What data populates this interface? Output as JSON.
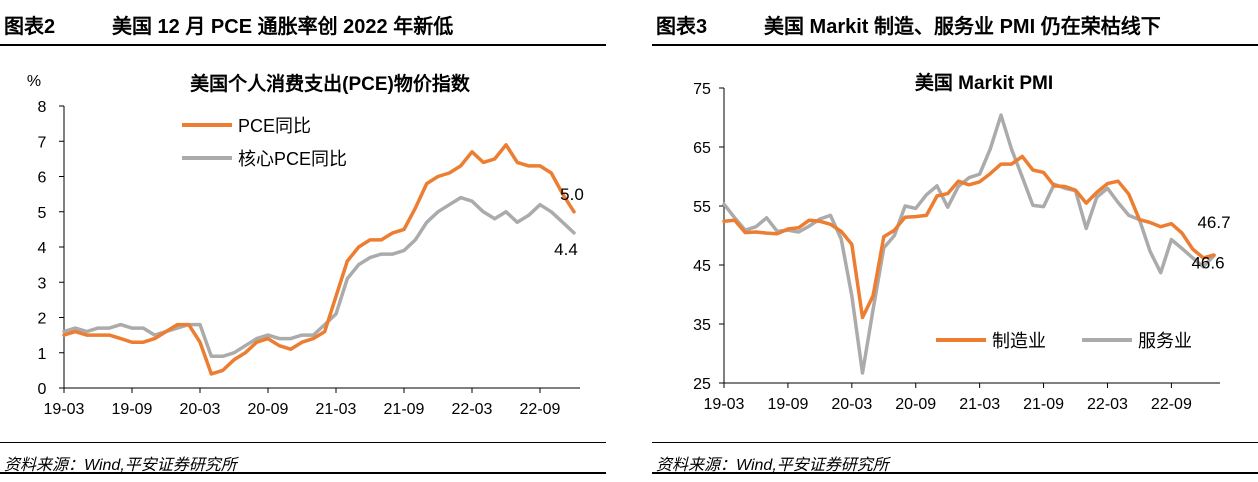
{
  "figures": [
    {
      "label": "图表2",
      "title": "美国 12 月 PCE 通胀率创 2022 年新低",
      "source": "资料来源：Wind,平安证券研究所"
    },
    {
      "label": "图表3",
      "title": "美国 Markit 制造、服务业 PMI 仍在荣枯线下",
      "source": "资料来源：Wind,平安证券研究所"
    }
  ],
  "chart_data": [
    {
      "type": "line",
      "title": "美国个人消费支出(PCE)物价指数",
      "ylabel": "%",
      "ylim": [
        0,
        8
      ],
      "yticks": [
        0,
        1,
        2,
        3,
        4,
        5,
        6,
        7,
        8
      ],
      "xlabels": [
        "19-03",
        "19-09",
        "20-03",
        "20-09",
        "21-03",
        "21-09",
        "22-03",
        "22-09"
      ],
      "x": [
        "19-03",
        "19-04",
        "19-05",
        "19-06",
        "19-07",
        "19-08",
        "19-09",
        "19-10",
        "19-11",
        "19-12",
        "20-01",
        "20-02",
        "20-03",
        "20-04",
        "20-05",
        "20-06",
        "20-07",
        "20-08",
        "20-09",
        "20-10",
        "20-11",
        "20-12",
        "21-01",
        "21-02",
        "21-03",
        "21-04",
        "21-05",
        "21-06",
        "21-07",
        "21-08",
        "21-09",
        "21-10",
        "21-11",
        "21-12",
        "22-01",
        "22-02",
        "22-03",
        "22-04",
        "22-05",
        "22-06",
        "22-07",
        "22-08",
        "22-09",
        "22-10",
        "22-11",
        "22-12"
      ],
      "series": [
        {
          "name": "PCE同比",
          "color": "#ED7D31",
          "values": [
            1.5,
            1.6,
            1.5,
            1.5,
            1.5,
            1.4,
            1.3,
            1.3,
            1.4,
            1.6,
            1.8,
            1.8,
            1.3,
            0.4,
            0.5,
            0.8,
            1.0,
            1.3,
            1.4,
            1.2,
            1.1,
            1.3,
            1.4,
            1.6,
            2.6,
            3.6,
            4.0,
            4.2,
            4.2,
            4.4,
            4.5,
            5.1,
            5.8,
            6.0,
            6.1,
            6.3,
            6.7,
            6.4,
            6.5,
            6.9,
            6.4,
            6.3,
            6.3,
            6.1,
            5.5,
            5.0
          ]
        },
        {
          "name": "核心PCE同比",
          "color": "#ABABAB",
          "values": [
            1.6,
            1.7,
            1.6,
            1.7,
            1.7,
            1.8,
            1.7,
            1.7,
            1.5,
            1.6,
            1.7,
            1.8,
            1.8,
            0.9,
            0.9,
            1.0,
            1.2,
            1.4,
            1.5,
            1.4,
            1.4,
            1.5,
            1.5,
            1.8,
            2.1,
            3.1,
            3.5,
            3.7,
            3.8,
            3.8,
            3.9,
            4.2,
            4.7,
            5.0,
            5.2,
            5.4,
            5.3,
            5.0,
            4.8,
            5.0,
            4.7,
            4.9,
            5.2,
            5.0,
            4.7,
            4.4
          ]
        }
      ],
      "end_labels": [
        "5.0",
        "4.4"
      ],
      "legend_position": "top-center"
    },
    {
      "type": "line",
      "title": "美国 Markit PMI",
      "ylim": [
        25,
        75
      ],
      "yticks": [
        25,
        35,
        45,
        55,
        65,
        75
      ],
      "xlabels": [
        "19-03",
        "19-09",
        "20-03",
        "20-09",
        "21-03",
        "21-09",
        "22-03",
        "22-09"
      ],
      "x": [
        "19-03",
        "19-04",
        "19-05",
        "19-06",
        "19-07",
        "19-08",
        "19-09",
        "19-10",
        "19-11",
        "19-12",
        "20-01",
        "20-02",
        "20-03",
        "20-04",
        "20-05",
        "20-06",
        "20-07",
        "20-08",
        "20-09",
        "20-10",
        "20-11",
        "20-12",
        "21-01",
        "21-02",
        "21-03",
        "21-04",
        "21-05",
        "21-06",
        "21-07",
        "21-08",
        "21-09",
        "21-10",
        "21-11",
        "21-12",
        "22-01",
        "22-02",
        "22-03",
        "22-04",
        "22-05",
        "22-06",
        "22-07",
        "22-08",
        "22-09",
        "22-10",
        "22-11",
        "22-12",
        "23-01"
      ],
      "series": [
        {
          "name": "制造业",
          "color": "#ED7D31",
          "values": [
            52.4,
            52.6,
            50.5,
            50.6,
            50.4,
            50.3,
            51.1,
            51.3,
            52.6,
            52.4,
            51.9,
            50.7,
            48.5,
            36.1,
            39.8,
            49.8,
            50.9,
            53.1,
            53.2,
            53.4,
            56.7,
            57.1,
            59.2,
            58.6,
            59.1,
            60.5,
            62.1,
            62.1,
            63.4,
            61.1,
            60.7,
            58.4,
            58.3,
            57.7,
            55.5,
            57.3,
            58.8,
            59.2,
            57.0,
            52.7,
            52.2,
            51.5,
            52.0,
            50.4,
            47.7,
            46.2,
            46.7
          ]
        },
        {
          "name": "服务业",
          "color": "#ABABAB",
          "values": [
            55.3,
            53.0,
            50.9,
            51.5,
            53.0,
            50.7,
            50.9,
            50.6,
            51.6,
            52.8,
            53.4,
            49.4,
            39.8,
            26.7,
            37.5,
            47.9,
            50.0,
            55.0,
            54.6,
            56.9,
            58.4,
            54.8,
            58.3,
            59.8,
            60.4,
            64.7,
            70.4,
            64.6,
            59.9,
            55.1,
            54.9,
            58.7,
            58.0,
            57.6,
            51.2,
            56.5,
            58.0,
            55.6,
            53.4,
            52.7,
            47.3,
            43.7,
            49.3,
            47.8,
            46.2,
            44.7,
            46.6
          ]
        }
      ],
      "end_labels": [
        "46.7",
        "46.6"
      ],
      "legend_position": "bottom-center"
    }
  ]
}
